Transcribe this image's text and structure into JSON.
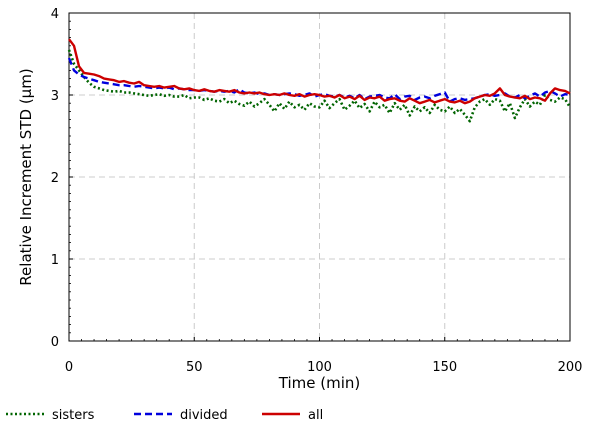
{
  "chart_data": {
    "type": "line",
    "xlabel": "Time (min)",
    "ylabel": "Relative Increment STD (µm)",
    "xlim": [
      0,
      200
    ],
    "ylim": [
      0,
      4
    ],
    "x_ticks": [
      0,
      50,
      100,
      150,
      200
    ],
    "y_ticks": [
      0,
      1,
      2,
      3,
      4
    ],
    "grid": true,
    "legend_position": "bottom-left",
    "series": [
      {
        "name": "sisters",
        "color": "#006400",
        "style": "dotted",
        "x": [
          0,
          2,
          4,
          6,
          8,
          10,
          12,
          14,
          16,
          18,
          20,
          22,
          24,
          26,
          28,
          30,
          32,
          34,
          36,
          38,
          40,
          42,
          44,
          46,
          48,
          50,
          52,
          54,
          56,
          58,
          60,
          62,
          64,
          66,
          68,
          70,
          72,
          74,
          76,
          78,
          80,
          82,
          84,
          86,
          88,
          90,
          92,
          94,
          96,
          98,
          100,
          102,
          104,
          106,
          108,
          110,
          112,
          114,
          116,
          118,
          120,
          122,
          124,
          126,
          128,
          130,
          132,
          134,
          136,
          138,
          140,
          142,
          144,
          146,
          148,
          150,
          152,
          154,
          156,
          158,
          160,
          162,
          164,
          166,
          168,
          170,
          172,
          174,
          176,
          178,
          180,
          182,
          184,
          186,
          188,
          190,
          192,
          194,
          196,
          198,
          200
        ],
        "values": [
          3.55,
          3.38,
          3.3,
          3.22,
          3.15,
          3.1,
          3.08,
          3.06,
          3.05,
          3.04,
          3.05,
          3.03,
          3.03,
          3.02,
          3.01,
          3.0,
          2.99,
          3.0,
          3.01,
          2.99,
          3.0,
          2.98,
          2.98,
          3.0,
          2.96,
          2.97,
          2.97,
          2.94,
          2.96,
          2.93,
          2.92,
          2.95,
          2.9,
          2.93,
          2.89,
          2.87,
          2.92,
          2.86,
          2.9,
          2.95,
          2.88,
          2.8,
          2.9,
          2.83,
          2.92,
          2.85,
          2.88,
          2.82,
          2.9,
          2.86,
          2.85,
          2.93,
          2.84,
          2.9,
          2.95,
          2.82,
          2.87,
          2.93,
          2.84,
          2.89,
          2.8,
          2.92,
          2.85,
          2.88,
          2.78,
          2.9,
          2.82,
          2.88,
          2.75,
          2.86,
          2.8,
          2.85,
          2.78,
          2.88,
          2.82,
          2.8,
          2.86,
          2.78,
          2.83,
          2.76,
          2.68,
          2.85,
          2.92,
          2.95,
          2.88,
          2.95,
          2.93,
          2.8,
          2.9,
          2.72,
          2.85,
          2.95,
          2.86,
          2.92,
          2.88,
          3.0,
          2.94,
          2.92,
          2.97,
          2.95,
          2.85
        ]
      },
      {
        "name": "divided",
        "color": "#0000dd",
        "style": "dashed",
        "x": [
          0,
          2,
          4,
          6,
          8,
          10,
          12,
          14,
          16,
          18,
          20,
          22,
          24,
          26,
          28,
          30,
          32,
          34,
          36,
          38,
          40,
          42,
          44,
          46,
          48,
          50,
          52,
          54,
          56,
          58,
          60,
          62,
          64,
          66,
          68,
          70,
          72,
          74,
          76,
          78,
          80,
          82,
          84,
          86,
          88,
          90,
          92,
          94,
          96,
          98,
          100,
          102,
          104,
          106,
          108,
          110,
          112,
          114,
          116,
          118,
          120,
          122,
          124,
          126,
          128,
          130,
          132,
          134,
          136,
          138,
          140,
          142,
          144,
          146,
          148,
          150,
          152,
          154,
          156,
          158,
          160,
          162,
          164,
          166,
          168,
          170,
          172,
          174,
          176,
          178,
          180,
          182,
          184,
          186,
          188,
          190,
          192,
          194,
          196,
          198,
          200
        ],
        "values": [
          3.45,
          3.3,
          3.25,
          3.22,
          3.2,
          3.18,
          3.16,
          3.15,
          3.14,
          3.13,
          3.12,
          3.12,
          3.11,
          3.1,
          3.11,
          3.1,
          3.09,
          3.08,
          3.09,
          3.08,
          3.09,
          3.07,
          3.08,
          3.07,
          3.06,
          3.06,
          3.05,
          3.06,
          3.05,
          3.04,
          3.05,
          3.04,
          3.05,
          3.03,
          3.07,
          3.03,
          3.02,
          3.03,
          3.01,
          3.02,
          3.0,
          3.01,
          3.0,
          3.01,
          3.02,
          3.01,
          2.99,
          3.0,
          3.02,
          2.98,
          3.0,
          3.01,
          2.99,
          2.98,
          3.0,
          2.97,
          2.99,
          2.96,
          3.0,
          2.95,
          2.98,
          2.99,
          3.0,
          2.97,
          2.96,
          3.01,
          2.95,
          2.98,
          2.99,
          2.94,
          2.97,
          2.98,
          2.96,
          2.99,
          3.01,
          3.03,
          2.92,
          2.95,
          2.96,
          2.94,
          2.95,
          2.96,
          2.98,
          3.0,
          3.01,
          2.99,
          3.0,
          3.02,
          2.98,
          2.97,
          3.0,
          2.96,
          2.99,
          3.02,
          2.98,
          3.03,
          3.05,
          3.02,
          2.98,
          3.01,
          3.0
        ]
      },
      {
        "name": "all",
        "color": "#cc0000",
        "style": "solid",
        "x": [
          0,
          2,
          4,
          6,
          8,
          10,
          12,
          14,
          16,
          18,
          20,
          22,
          24,
          26,
          28,
          30,
          32,
          34,
          36,
          38,
          40,
          42,
          44,
          46,
          48,
          50,
          52,
          54,
          56,
          58,
          60,
          62,
          64,
          66,
          68,
          70,
          72,
          74,
          76,
          78,
          80,
          82,
          84,
          86,
          88,
          90,
          92,
          94,
          96,
          98,
          100,
          102,
          104,
          106,
          108,
          110,
          112,
          114,
          116,
          118,
          120,
          122,
          124,
          126,
          128,
          130,
          132,
          134,
          136,
          138,
          140,
          142,
          144,
          146,
          148,
          150,
          152,
          154,
          156,
          158,
          160,
          162,
          164,
          166,
          168,
          170,
          172,
          174,
          176,
          178,
          180,
          182,
          184,
          186,
          188,
          190,
          192,
          194,
          196,
          198,
          200
        ],
        "values": [
          3.68,
          3.6,
          3.35,
          3.27,
          3.26,
          3.25,
          3.23,
          3.2,
          3.19,
          3.18,
          3.16,
          3.17,
          3.15,
          3.14,
          3.16,
          3.12,
          3.11,
          3.1,
          3.11,
          3.09,
          3.1,
          3.11,
          3.08,
          3.07,
          3.08,
          3.06,
          3.05,
          3.07,
          3.05,
          3.04,
          3.06,
          3.05,
          3.04,
          3.06,
          3.03,
          3.02,
          3.03,
          3.02,
          3.03,
          3.01,
          3.0,
          3.01,
          3.0,
          3.02,
          3.0,
          2.99,
          3.01,
          2.98,
          3.0,
          3.01,
          3.0,
          2.98,
          2.99,
          2.97,
          3.0,
          2.96,
          2.98,
          2.95,
          2.99,
          2.94,
          2.97,
          2.96,
          2.98,
          2.93,
          2.95,
          2.96,
          2.93,
          2.92,
          2.96,
          2.93,
          2.9,
          2.92,
          2.94,
          2.91,
          2.93,
          2.95,
          2.92,
          2.91,
          2.93,
          2.9,
          2.92,
          2.96,
          2.98,
          3.0,
          2.99,
          3.02,
          3.08,
          3.0,
          2.98,
          2.97,
          2.96,
          2.99,
          2.95,
          2.97,
          2.96,
          2.93,
          3.02,
          3.08,
          3.06,
          3.05,
          3.02
        ]
      }
    ]
  },
  "legend": {
    "items": [
      {
        "label": "sisters",
        "color": "#006400",
        "style": "dotted"
      },
      {
        "label": "divided",
        "color": "#0000dd",
        "style": "dashed"
      },
      {
        "label": "all",
        "color": "#cc0000",
        "style": "solid"
      }
    ]
  }
}
